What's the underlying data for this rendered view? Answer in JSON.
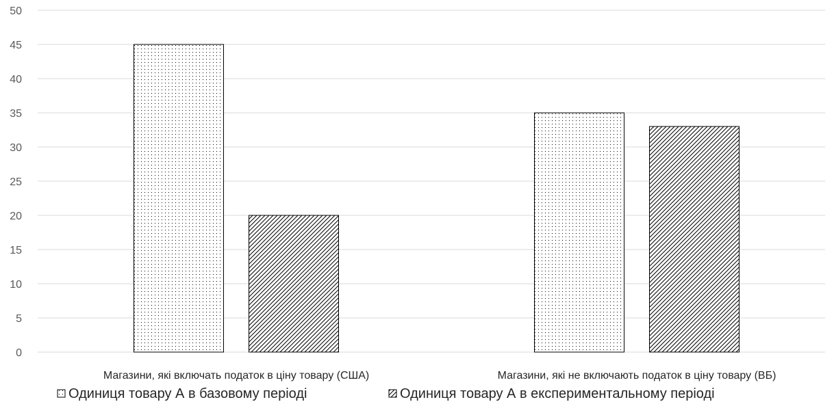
{
  "chart_data": {
    "type": "bar",
    "title": "",
    "xlabel": "",
    "ylabel": "",
    "categories": [
      "Магазини, які включать податок в ціну товару (США)",
      "Магазини, які не включають податок в ціну товару (ВБ)"
    ],
    "series": [
      {
        "name": "Одиниця товару А в базовому періоді",
        "values": [
          45,
          35
        ],
        "pattern": "dots",
        "icon": "dotted-square-icon"
      },
      {
        "name": "Одиниця товару А в експериментальному періоді",
        "values": [
          20,
          33
        ],
        "pattern": "diagonal-hatch",
        "icon": "hatched-square-icon"
      }
    ],
    "ylim": [
      0,
      50
    ],
    "yticks": [
      0,
      5,
      10,
      15,
      20,
      25,
      30,
      35,
      40,
      45,
      50
    ],
    "grid": true,
    "legend_position": "bottom",
    "colors": {
      "bar_fill": "#ffffff",
      "bar_outline": "#000000",
      "pattern": "#000000",
      "grid": "#d9d9d9",
      "axis": "#d9d9d9",
      "tick_text": "#595959",
      "label_text": "#262626"
    }
  }
}
